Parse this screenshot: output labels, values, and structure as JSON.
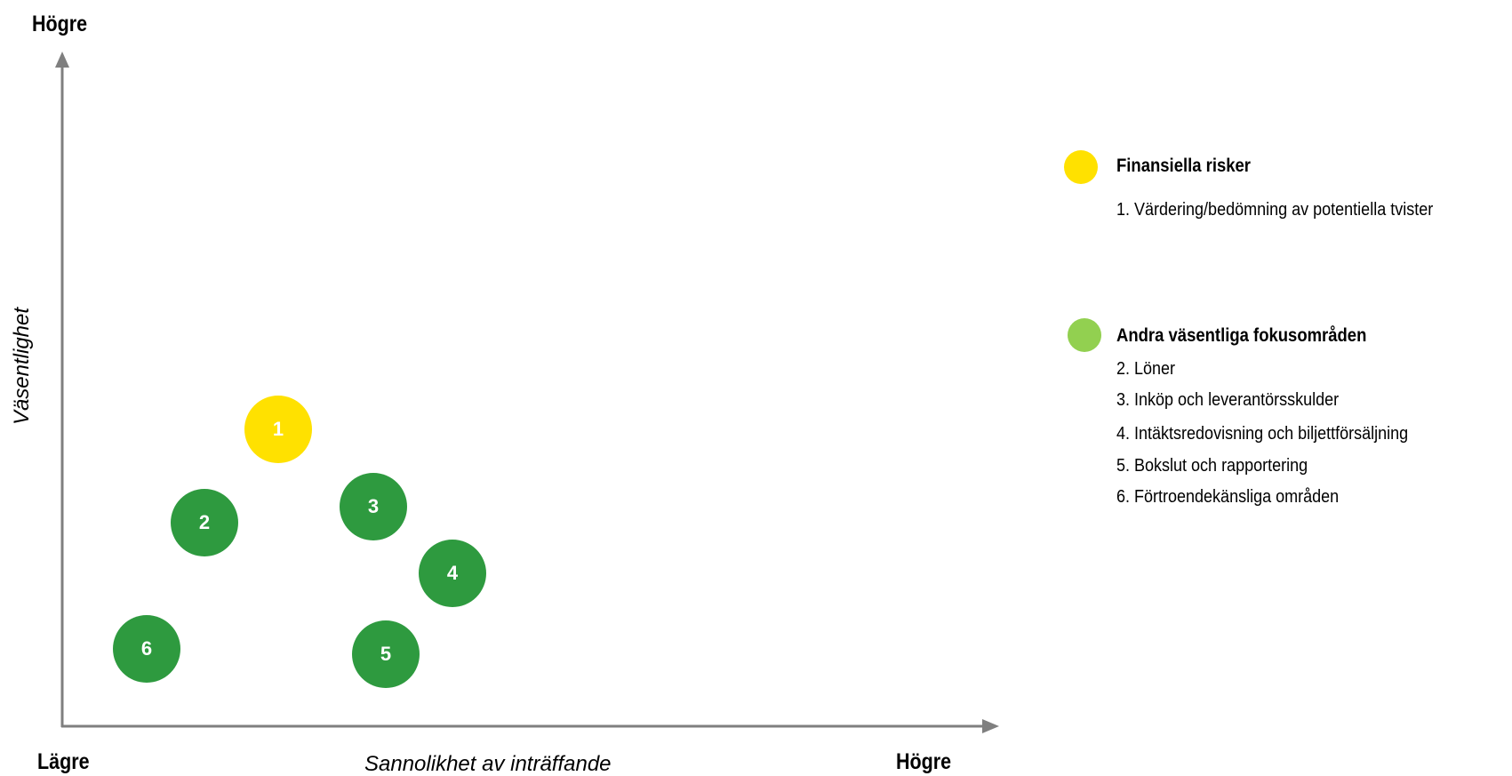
{
  "axes": {
    "y_high": "Högre",
    "y_title": "Väsentlighet",
    "x_low": "Lägre",
    "x_title": "Sannolikhet av inträffande",
    "x_high": "Högre"
  },
  "colors": {
    "axis": "#7f7f7f",
    "finansiella": "#ffe100",
    "andra_dark": "#2e9a3f",
    "andra_light": "#92d050"
  },
  "risks": [
    {
      "label": "1",
      "group": "finansiella"
    },
    {
      "label": "2",
      "group": "andra"
    },
    {
      "label": "3",
      "group": "andra"
    },
    {
      "label": "4",
      "group": "andra"
    },
    {
      "label": "5",
      "group": "andra"
    },
    {
      "label": "6",
      "group": "andra"
    }
  ],
  "legend": {
    "groups": [
      {
        "title": "Finansiella risker",
        "color": "#ffe100",
        "items": [
          "1. Värdering/bedömning av potentiella tvister"
        ]
      },
      {
        "title": "Andra väsentliga fokusområden",
        "color": "#92d050",
        "items": [
          "2. Löner",
          "3. Inköp och leverantörsskulder",
          "4. Intäktsredovisning och biljettförsäljning",
          "5. Bokslut och rapportering",
          "6. Förtroendekänsliga områden"
        ]
      }
    ]
  }
}
